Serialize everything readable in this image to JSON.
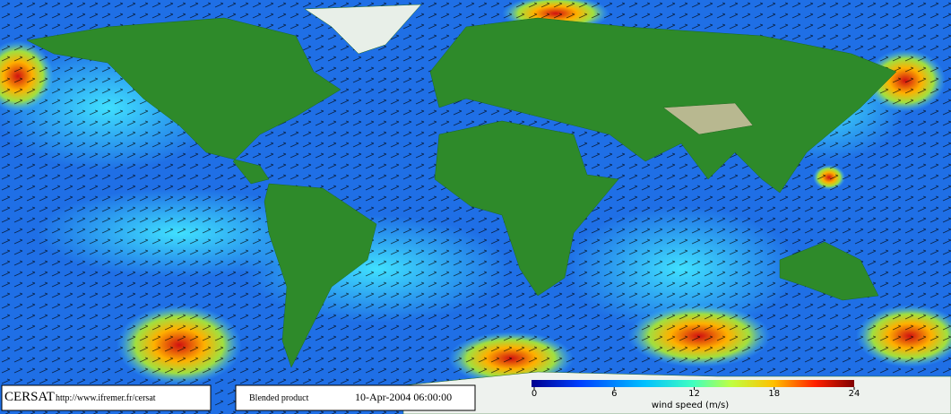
{
  "footer": {
    "logo": "CERSAT",
    "url": "http://www.ifremer.fr/cersat",
    "product": "Blended product",
    "date": "10-Apr-2004 06:00:00"
  },
  "colorbar": {
    "label": "wind speed (m/s)",
    "range": [
      0,
      24
    ],
    "ticks": [
      0,
      6,
      12,
      18,
      24
    ]
  }
}
